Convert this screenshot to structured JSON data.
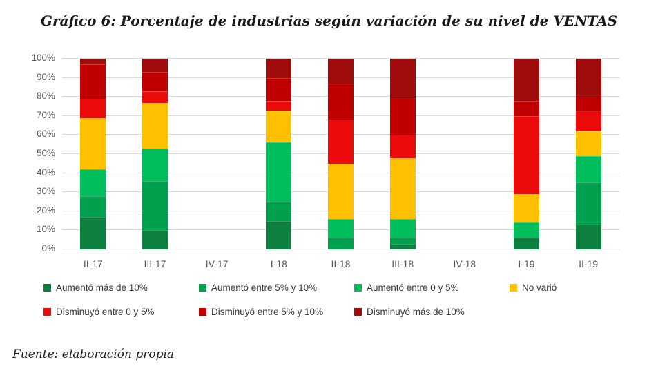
{
  "title": "Gráfico 6: Porcentaje de industrias según variación de su nivel de VENTAS",
  "footer": "Fuente: elaboración propia",
  "colors": {
    "grid": "#d9d9d9",
    "axis_text": "#595959",
    "legend_text": "#373740",
    "title_text": "#1a1a1a",
    "background": "#ffffff"
  },
  "chart_data": {
    "type": "bar",
    "stacked": true,
    "percent_stacked": true,
    "title": "Gráfico 6: Porcentaje de industrias según variación de su nivel de VENTAS",
    "xlabel": "",
    "ylabel": "",
    "ylim": [
      0,
      100
    ],
    "grid": "horizontal",
    "legend_position": "bottom",
    "y_tick_labels": [
      "0%",
      "10%",
      "20%",
      "30%",
      "40%",
      "50%",
      "60%",
      "70%",
      "80%",
      "90%",
      "100%"
    ],
    "categories": [
      "II-17",
      "III-17",
      "IV-17",
      "I-18",
      "II-18",
      "III-18",
      "IV-18",
      "I-19",
      "II-19"
    ],
    "series": [
      {
        "name": "Aumentó más de 10%",
        "color": "#0d8040",
        "values": [
          17,
          10,
          0,
          15,
          0,
          3,
          0,
          6,
          13
        ]
      },
      {
        "name": "Aumentó entre 5% y 10%",
        "color": "#00a04f",
        "values": [
          11,
          26,
          0,
          10,
          6,
          3,
          0,
          0,
          22
        ]
      },
      {
        "name": "Aumentó entre 0 y 5%",
        "color": "#00be5c",
        "values": [
          14,
          17,
          0,
          31,
          10,
          10,
          0,
          8,
          14
        ]
      },
      {
        "name": "No varió",
        "color": "#ffc000",
        "values": [
          27,
          24,
          0,
          17,
          29,
          32,
          0,
          15,
          13
        ]
      },
      {
        "name": "Disminuyó entre 0 y 5%",
        "color": "#ec0b0b",
        "values": [
          10,
          6,
          0,
          5,
          23,
          12,
          0,
          41,
          11
        ]
      },
      {
        "name": "Disminuyó entre 5% y 10%",
        "color": "#c00000",
        "values": [
          18,
          10,
          0,
          12,
          19,
          19,
          0,
          8,
          7
        ]
      },
      {
        "name": "Disminuyó más de 10%",
        "color": "#a00b0b",
        "values": [
          3,
          7,
          0,
          10,
          13,
          21,
          0,
          22,
          20
        ]
      }
    ],
    "legend_rows": [
      [
        0,
        1,
        2,
        3
      ],
      [
        4,
        5,
        6
      ]
    ]
  }
}
